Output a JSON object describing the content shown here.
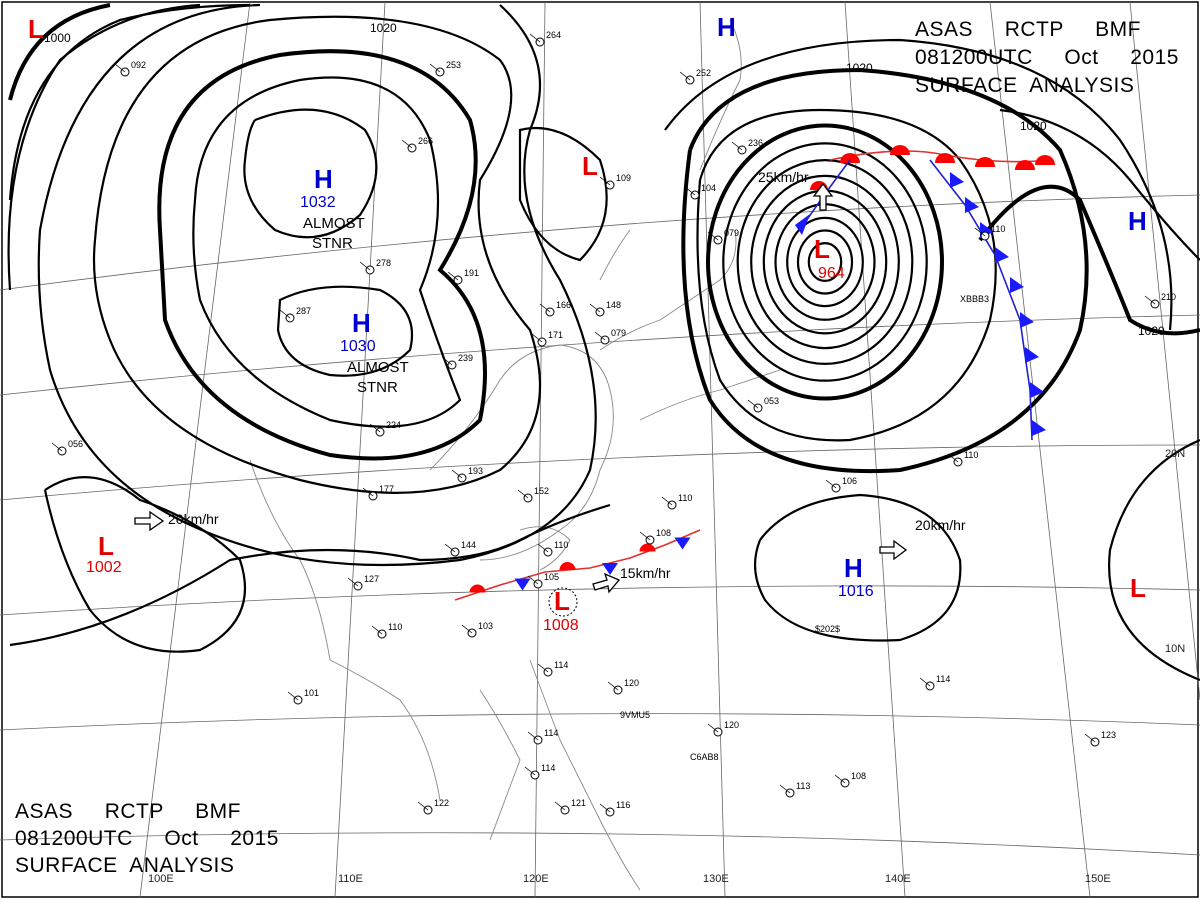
{
  "map": {
    "header_top_right": {
      "line1": "ASAS     RCTP     BMF",
      "line2": "081200UTC     Oct     2015",
      "line3": "SURFACE  ANALYSIS"
    },
    "header_bottom_left": {
      "line1": "ASAS     RCTP     BMF",
      "line2": "081200UTC     Oct     2015",
      "line3": "SURFACE  ANALYSIS"
    },
    "longitude_labels": [
      "100E",
      "110E",
      "120E",
      "130E",
      "140E",
      "150E"
    ],
    "latitude_labels": [
      "20N",
      "10N"
    ],
    "isobar_labels": [
      "1000",
      "1020",
      "1020",
      "1020",
      "1020"
    ],
    "pressure_systems": [
      {
        "type": "H",
        "value": "1032",
        "color": "#0000cc"
      },
      {
        "type": "H",
        "value": "1030",
        "color": "#0000cc"
      },
      {
        "type": "H",
        "value": "1016",
        "color": "#0000cc"
      },
      {
        "type": "H",
        "value": "",
        "color": "#0000cc"
      },
      {
        "type": "H",
        "value": "",
        "color": "#0000cc"
      },
      {
        "type": "L",
        "value": "1002",
        "color": "#e00000"
      },
      {
        "type": "L",
        "value": "1008",
        "color": "#e00000"
      },
      {
        "type": "L",
        "value": "964",
        "color": "#e00000"
      },
      {
        "type": "L",
        "value": "",
        "color": "#e00000"
      },
      {
        "type": "L",
        "value": "",
        "color": "#e00000"
      },
      {
        "type": "L",
        "value": "",
        "color": "#e00000"
      }
    ],
    "annotations": {
      "almost_stnr_1": [
        "ALMOST",
        "STNR"
      ],
      "almost_stnr_2": [
        "ALMOST",
        "STNR"
      ]
    },
    "motion_labels": [
      "20km/hr",
      "15km/hr",
      "25km/hr",
      "20km/hr"
    ],
    "station_codes": [
      "9VMU5",
      "C6AB8",
      "XBBB3",
      "$202$"
    ],
    "station_values": [
      "264",
      "253",
      "252",
      "092",
      "266",
      "236",
      "109",
      "104",
      "079",
      "191",
      "278",
      "287",
      "239",
      "171",
      "166",
      "148",
      "079",
      "224",
      "193",
      "177",
      "152",
      "144",
      "110",
      "108",
      "110",
      "127",
      "110",
      "103",
      "105",
      "114",
      "101",
      "120",
      "120",
      "114",
      "114",
      "121",
      "116",
      "122",
      "110",
      "106",
      "114",
      "108",
      "113",
      "123",
      "053",
      "056",
      "110",
      "210"
    ],
    "colors": {
      "high": "#0000cc",
      "low": "#e00000",
      "cold_front": "#1a1aff",
      "warm_front": "#ff0000"
    }
  }
}
